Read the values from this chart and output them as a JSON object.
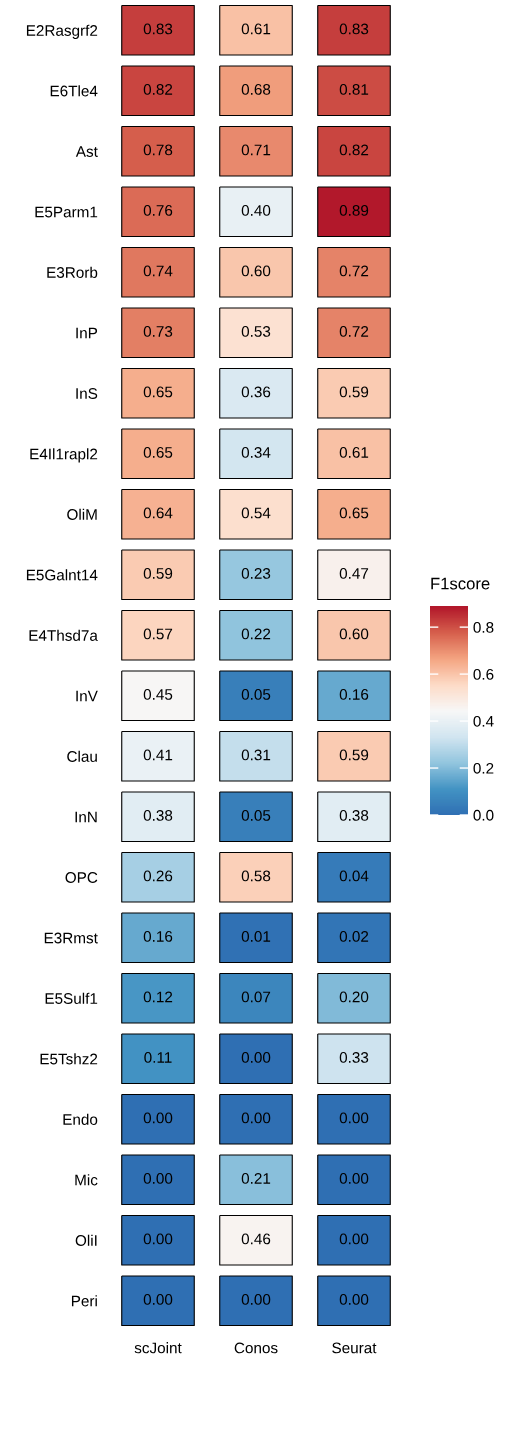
{
  "chart_data": {
    "type": "heatmap",
    "categories": [
      "scJoint",
      "Conos",
      "Seurat"
    ],
    "y_categories": [
      "E2Rasgrf2",
      "E6Tle4",
      "Ast",
      "E5Parm1",
      "E3Rorb",
      "InP",
      "InS",
      "E4Il1rapl2",
      "OliM",
      "E5Galnt14",
      "E4Thsd7a",
      "InV",
      "Clau",
      "InN",
      "OPC",
      "E3Rmst",
      "E5Sulf1",
      "E5Tshz2",
      "Endo",
      "Mic",
      "OliI",
      "Peri"
    ],
    "cells": [
      [
        0.83,
        0.61,
        0.83
      ],
      [
        0.82,
        0.68,
        0.81
      ],
      [
        0.78,
        0.71,
        0.82
      ],
      [
        0.76,
        0.4,
        0.89
      ],
      [
        0.74,
        0.6,
        0.72
      ],
      [
        0.73,
        0.53,
        0.72
      ],
      [
        0.65,
        0.36,
        0.59
      ],
      [
        0.65,
        0.34,
        0.61
      ],
      [
        0.64,
        0.54,
        0.65
      ],
      [
        0.59,
        0.23,
        0.47
      ],
      [
        0.57,
        0.22,
        0.6
      ],
      [
        0.45,
        0.05,
        0.16
      ],
      [
        0.41,
        0.31,
        0.59
      ],
      [
        0.38,
        0.05,
        0.38
      ],
      [
        0.26,
        0.58,
        0.04
      ],
      [
        0.16,
        0.01,
        0.02
      ],
      [
        0.12,
        0.07,
        0.2
      ],
      [
        0.11,
        0.0,
        0.33
      ],
      [
        0.0,
        0.0,
        0.0
      ],
      [
        0.0,
        0.21,
        0.0
      ],
      [
        0.0,
        0.46,
        0.0
      ],
      [
        0.0,
        0.0,
        0.0
      ]
    ],
    "cell_labels": [
      [
        "0.83",
        "0.61",
        "0.83"
      ],
      [
        "0.82",
        "0.68",
        "0.81"
      ],
      [
        "0.78",
        "0.71",
        "0.82"
      ],
      [
        "0.76",
        "0.40",
        "0.89"
      ],
      [
        "0.74",
        "0.60",
        "0.72"
      ],
      [
        "0.73",
        "0.53",
        "0.72"
      ],
      [
        "0.65",
        "0.36",
        "0.59"
      ],
      [
        "0.65",
        "0.34",
        "0.61"
      ],
      [
        "0.64",
        "0.54",
        "0.65"
      ],
      [
        "0.59",
        "0.23",
        "0.47"
      ],
      [
        "0.57",
        "0.22",
        "0.60"
      ],
      [
        "0.45",
        "0.05",
        "0.16"
      ],
      [
        "0.41",
        "0.31",
        "0.59"
      ],
      [
        "0.38",
        "0.05",
        "0.38"
      ],
      [
        "0.26",
        "0.58",
        "0.04"
      ],
      [
        "0.16",
        "0.01",
        "0.02"
      ],
      [
        "0.12",
        "0.07",
        "0.20"
      ],
      [
        "0.11",
        "0.00",
        "0.33"
      ],
      [
        "0.00",
        "0.00",
        "0.00"
      ],
      [
        "0.00",
        "0.21",
        "0.00"
      ],
      [
        "0.00",
        "0.46",
        "0.00"
      ],
      [
        "0.00",
        "0.00",
        "0.00"
      ]
    ],
    "clabel": "F1score",
    "clim": [
      0,
      0.89
    ],
    "cticks": [
      {
        "value": 0,
        "label": "0.0"
      },
      {
        "value": 0.2,
        "label": "0.2"
      },
      {
        "value": 0.4,
        "label": "0.4"
      },
      {
        "value": 0.6,
        "label": "0.6"
      },
      {
        "value": 0.8,
        "label": "0.8"
      }
    ]
  }
}
